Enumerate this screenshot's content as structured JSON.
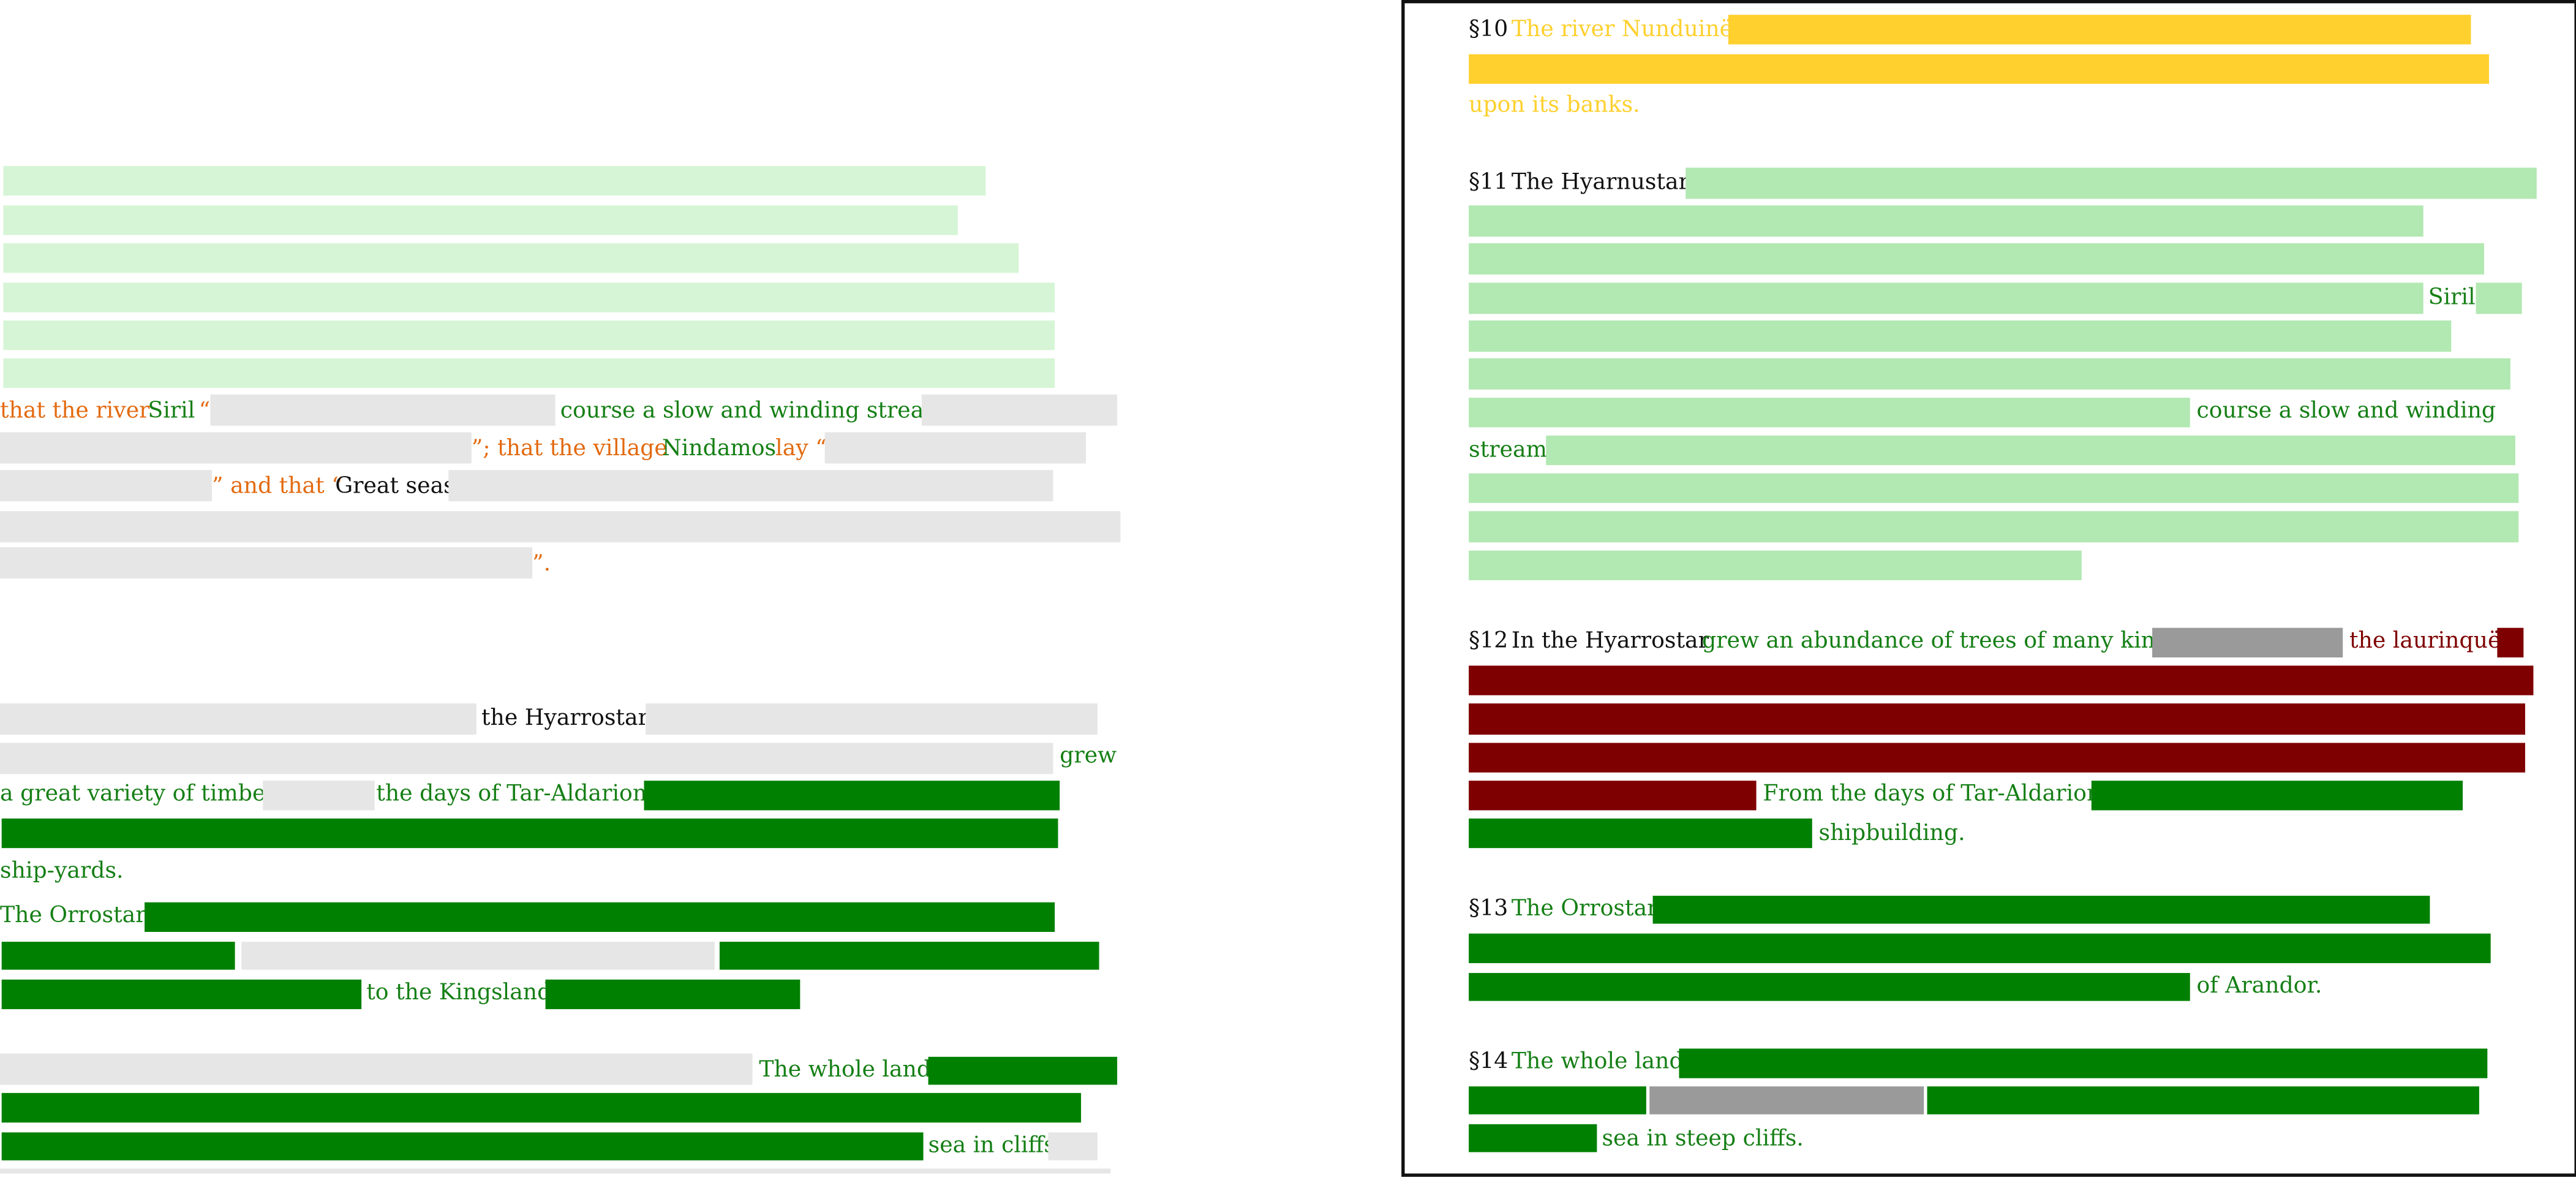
{
  "colors": {
    "orange": "#e36a10",
    "green": "#157f15",
    "gold": "#ffd02e",
    "dark_red": "#7f0000",
    "black": "#111111",
    "mid_gray": "#9a9a9a",
    "light_gray": "#e6e6e6",
    "light_mint": "#d6f5d6",
    "mint": "#b2e8b2",
    "dark_green": "#008000"
  },
  "left": {
    "siril_block": {
      "l1_a": "that the river",
      "l1_b": "Siril",
      "l1_c": "“",
      "l1_d": "course a slow and winding stream",
      "l2_a": "”; that the village",
      "l2_b": "Nindamos",
      "l2_c": "lay “",
      "l3_a": "” and that “",
      "l3_b": "Great seas",
      "l5_a": "”."
    },
    "hyarrostar_block": {
      "l1": "the Hyarrostar",
      "l2": "grew",
      "l3_a": "a great variety of timber",
      "l3_b": "the days of Tar-Aldarion,",
      "l5": "ship-yards."
    },
    "orrostar_block": {
      "l1": "The Orrostar",
      "l3": "to the Kingsland"
    },
    "whole_land_block": {
      "l1": "The whole land",
      "l3": "sea in cliffs"
    }
  },
  "right": {
    "s10": {
      "num": "§10",
      "a": "The river Nunduinë",
      "c": "upon its banks."
    },
    "s11": {
      "num": "§11",
      "a": "The Hyarnustar",
      "b": "Siril",
      "c": "course a slow and winding",
      "d": "stream"
    },
    "s12": {
      "num": "§12",
      "a": "In the Hyarrostar",
      "b": "grew an abundance of trees of many kinds",
      "c": "the laurinquë",
      "d": "From the days of Tar-Aldarion",
      "e": "shipbuilding."
    },
    "s13": {
      "num": "§13",
      "a": "The Orrostar",
      "b": "of Arandor."
    },
    "s14": {
      "num": "§14",
      "a": "The whole land",
      "b": "sea in steep cliffs."
    }
  }
}
